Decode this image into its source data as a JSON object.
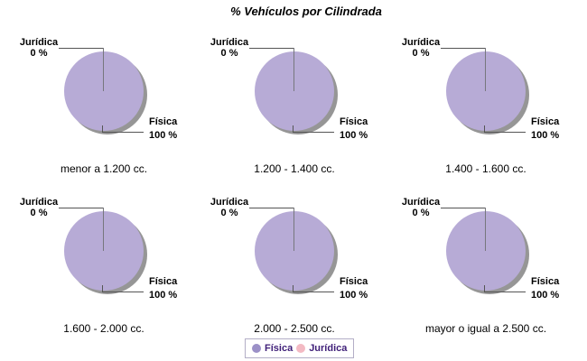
{
  "title": "% Vehículos por Cilindrada",
  "pie_labels": {
    "juridica_name": "Jurídica",
    "juridica_value": "0 %",
    "fisica_name": "Física",
    "fisica_value": "100 %"
  },
  "legend": {
    "position": "bottom-center",
    "items": [
      {
        "label": "Física",
        "color": "#9b90c7"
      },
      {
        "label": "Jurídica",
        "color": "#f3bac3"
      }
    ]
  },
  "colors": {
    "pie_fill": "#b7abd6",
    "pie_shadow": "#969696",
    "leader_line": "#555555",
    "legend_border": "#b3aec6",
    "legend_text": "#3f1f78",
    "juridica_pink": "#f3bac3"
  },
  "chart_data": [
    {
      "type": "pie",
      "title": "menor a 1.200 cc.",
      "categories": [
        "Física",
        "Jurídica"
      ],
      "values": [
        100,
        0
      ],
      "unit": "%"
    },
    {
      "type": "pie",
      "title": "1.200 - 1.400 cc.",
      "categories": [
        "Física",
        "Jurídica"
      ],
      "values": [
        100,
        0
      ],
      "unit": "%"
    },
    {
      "type": "pie",
      "title": "1.400 - 1.600 cc.",
      "categories": [
        "Física",
        "Jurídica"
      ],
      "values": [
        100,
        0
      ],
      "unit": "%"
    },
    {
      "type": "pie",
      "title": "1.600 - 2.000 cc.",
      "categories": [
        "Física",
        "Jurídica"
      ],
      "values": [
        100,
        0
      ],
      "unit": "%"
    },
    {
      "type": "pie",
      "title": "2.000 - 2.500 cc.",
      "categories": [
        "Física",
        "Jurídica"
      ],
      "values": [
        100,
        0
      ],
      "unit": "%"
    },
    {
      "type": "pie",
      "title": "mayor o igual a 2.500 cc.",
      "categories": [
        "Física",
        "Jurídica"
      ],
      "values": [
        100,
        0
      ],
      "unit": "%"
    }
  ]
}
